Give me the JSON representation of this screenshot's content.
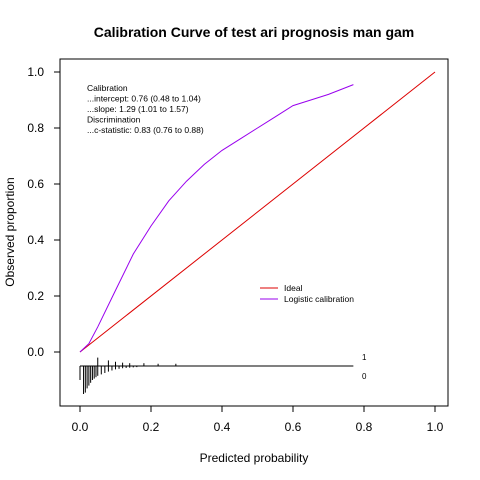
{
  "chart_data": {
    "type": "line",
    "title": "Calibration Curve of test ari prognosis man gam",
    "xlabel": "Predicted probability",
    "ylabel": "Observed proportion",
    "xlim": [
      -0.09,
      1.04
    ],
    "ylim": [
      -0.2,
      1.04
    ],
    "grid": false,
    "x_ticks": [
      {
        "value": 0.0,
        "label": "0.0"
      },
      {
        "value": 0.2,
        "label": "0.2"
      },
      {
        "value": 0.4,
        "label": "0.4"
      },
      {
        "value": 0.6,
        "label": "0.6"
      },
      {
        "value": 0.8,
        "label": "0.8"
      },
      {
        "value": 1.0,
        "label": "1.0"
      }
    ],
    "y_ticks": [
      {
        "value": 0.0,
        "label": "0.0"
      },
      {
        "value": 0.2,
        "label": "0.2"
      },
      {
        "value": 0.4,
        "label": "0.4"
      },
      {
        "value": 0.6,
        "label": "0.6"
      },
      {
        "value": 0.8,
        "label": "0.8"
      },
      {
        "value": 1.0,
        "label": "1.0"
      }
    ],
    "series": [
      {
        "name": "Ideal",
        "color": "#dd0000",
        "x": [
          0.0,
          1.0
        ],
        "y": [
          0.0,
          1.0
        ]
      },
      {
        "name": "Logistic calibration",
        "color": "#9900ee",
        "x": [
          0.0,
          0.025,
          0.05,
          0.1,
          0.15,
          0.2,
          0.25,
          0.3,
          0.35,
          0.4,
          0.45,
          0.5,
          0.55,
          0.6,
          0.65,
          0.7,
          0.77
        ],
        "y": [
          0.0,
          0.03,
          0.09,
          0.22,
          0.35,
          0.45,
          0.54,
          0.61,
          0.67,
          0.72,
          0.76,
          0.8,
          0.84,
          0.88,
          0.9,
          0.92,
          0.955
        ]
      }
    ],
    "legend": {
      "position": "middle-right",
      "entries": [
        {
          "label": "Ideal",
          "color": "#dd0000"
        },
        {
          "label": "Logistic calibration",
          "color": "#9900ee"
        }
      ]
    },
    "annotations": [
      "Calibration",
      "...intercept: 0.76 (0.48 to 1.04)",
      "...slope: 1.29 (1.01 to 1.57)",
      "Discrimination",
      "...c-statistic: 0.83 (0.76 to 0.88)"
    ],
    "distribution": {
      "baseline_y": -0.05,
      "max_height": 0.1,
      "label_events": "1",
      "label_nonevents": "0",
      "events": {
        "x": [
          0.05,
          0.08,
          0.1,
          0.12,
          0.14,
          0.18,
          0.22,
          0.27
        ],
        "h": [
          0.3,
          0.2,
          0.15,
          0.12,
          0.1,
          0.1,
          0.08,
          0.08
        ]
      },
      "nonevents": {
        "x": [
          0.0,
          0.01,
          0.015,
          0.02,
          0.025,
          0.03,
          0.035,
          0.04,
          0.045,
          0.05,
          0.06,
          0.07,
          0.08,
          0.09,
          0.1,
          0.11,
          0.12,
          0.13,
          0.14,
          0.15,
          0.16
        ],
        "h": [
          0.5,
          1.0,
          0.95,
          0.8,
          0.7,
          0.6,
          0.5,
          0.45,
          0.4,
          0.35,
          0.3,
          0.25,
          0.2,
          0.16,
          0.12,
          0.1,
          0.08,
          0.07,
          0.06,
          0.05,
          0.04
        ]
      }
    }
  }
}
